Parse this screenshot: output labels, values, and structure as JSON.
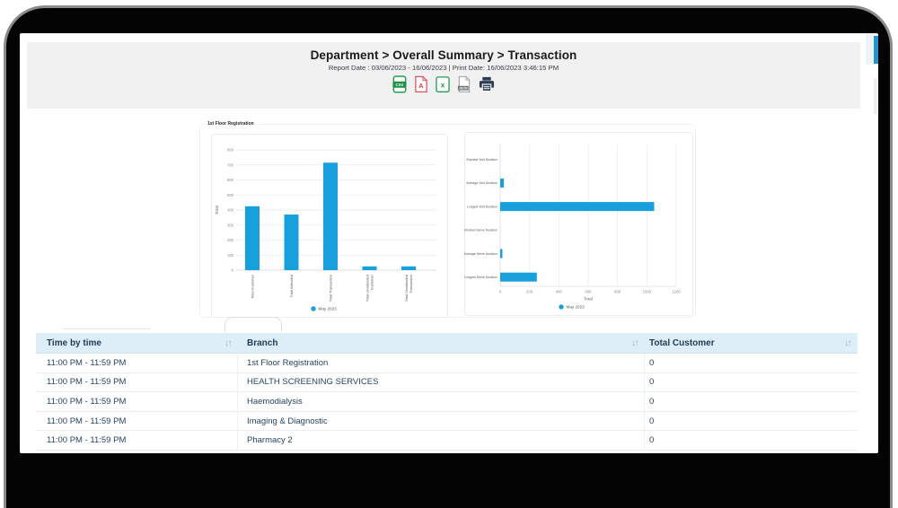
{
  "header": {
    "title": "Department > Overall Summary > Transaction",
    "subtitle": "Report Date : 03/06/2023 - 16/06/2023 | Print Date: 16/06/2023 3:46:15 PM",
    "export": {
      "csv": "Export CSV",
      "pdf": "Export PDF",
      "excel": "Export Excel",
      "json": "Export JSON",
      "print": "Print"
    }
  },
  "section": {
    "title": "1st Floor Registration"
  },
  "chart_data": [
    {
      "type": "bar",
      "title": "1st Floor Registration",
      "categories": [
        "Total Customer",
        "Total Attended",
        "Total Transaction",
        "Total Unattended Customer",
        "Total Unattended Transaction"
      ],
      "values": [
        425,
        370,
        715,
        25,
        25
      ],
      "xlabel": "",
      "ylabel": "Total",
      "ylim": [
        0,
        800
      ],
      "ytick_step": 100,
      "legend": [
        "May 2023"
      ],
      "legend_position": "bottom",
      "grid": true,
      "color": "#18a0dc"
    },
    {
      "type": "bar",
      "orientation": "horizontal",
      "categories": [
        "Shortest Visit Duration",
        "Average Visit Duration",
        "Longest Visit Duration",
        "Shortest Serve Duration",
        "Average Serve Duration",
        "Longest Serve Duration"
      ],
      "values": [
        0,
        25,
        1050,
        0,
        15,
        250
      ],
      "xlabel": "Total",
      "ylabel": "",
      "xlim": [
        0,
        1200
      ],
      "xtick_step": 200,
      "legend": [
        "May 2023"
      ],
      "legend_position": "bottom",
      "grid": true,
      "color": "#18a0dc"
    }
  ],
  "table": {
    "columns": [
      "Time by time",
      "Branch",
      "Total Customer"
    ],
    "rows": [
      {
        "time": "11:00 PM - 11:59 PM",
        "branch": "1st Floor Registration",
        "total": "0"
      },
      {
        "time": "11:00 PM - 11:59 PM",
        "branch": "HEALTH SCREENING SERVICES",
        "total": "0"
      },
      {
        "time": "11:00 PM - 11:59 PM",
        "branch": "Haemodialysis",
        "total": "0"
      },
      {
        "time": "11:00 PM - 11:59 PM",
        "branch": "Imaging & Diagnostic",
        "total": "0"
      },
      {
        "time": "11:00 PM - 11:59 PM",
        "branch": "Pharmacy 2",
        "total": "0"
      }
    ]
  },
  "colors": {
    "accent": "#18a0dc",
    "table_header_bg": "#ddeef8",
    "header_band_bg": "#f1f1f1",
    "text_navy": "#24425f"
  }
}
